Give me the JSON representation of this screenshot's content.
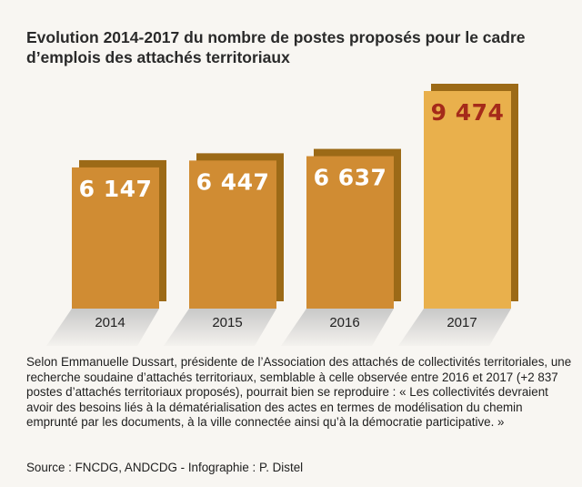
{
  "chart_data": {
    "type": "bar",
    "title": "Evolution 2014-2017 du nombre de postes proposés pour le cadre d’emplois des attachés territoriaux",
    "categories": [
      "2014",
      "2015",
      "2016",
      "2017"
    ],
    "values": [
      6147,
      6447,
      6637,
      9474
    ],
    "value_labels": [
      "6 147",
      "6 447",
      "6 637",
      "9 474"
    ],
    "xlabel": "",
    "ylabel": "",
    "ylim": [
      0,
      9474
    ],
    "grid": false,
    "colors": {
      "bar": "#d08c33",
      "bar_shadow": "#9c6a17",
      "highlight_bar": "#e9b04c",
      "highlight_label": "#a52a1a",
      "label": "#ffffff"
    }
  },
  "body_text": "Selon Emmanuelle Dussart, présidente de l’Association des attachés de collectivités territoriales, une recherche soudaine d’attachés territoriaux, semblable à celle observée entre 2016 et 2017 (+2 837 postes d’attachés territoriaux proposés), pourrait bien se reproduire : « Les collectivités devraient avoir des besoins liés à la dématérialisation des actes en termes de modélisation du chemin emprunté par les documents, à la ville connectée ainsi qu’à la démocratie participative. »",
  "source": "Source : FNCDG, ANDCDG - Infographie : P. Distel"
}
